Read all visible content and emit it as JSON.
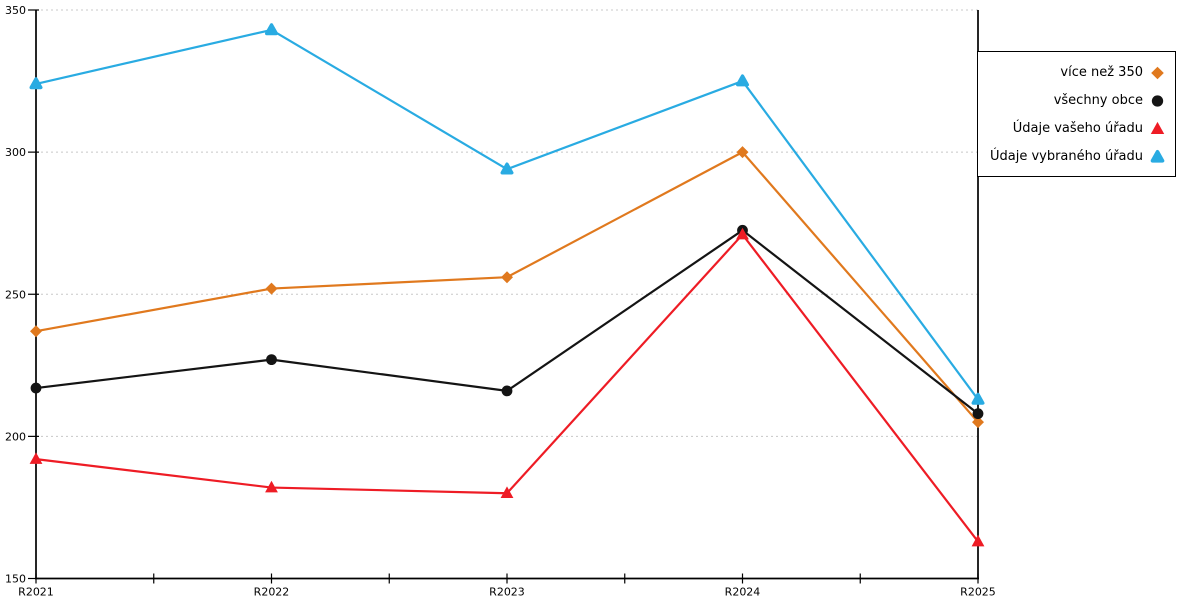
{
  "chart_data": {
    "type": "line",
    "title": "",
    "xlabel": "",
    "ylabel": "",
    "categories": [
      "R2021",
      "R2022",
      "R2023",
      "R2024",
      "R2025"
    ],
    "series": [
      {
        "name": "více než 350",
        "marker": "diamond",
        "color": "#e0791e",
        "values": [
          237,
          252,
          256,
          300,
          205
        ]
      },
      {
        "name": "všechny obce",
        "marker": "circle",
        "color": "#141414",
        "values": [
          217,
          227,
          216,
          272.5,
          208
        ]
      },
      {
        "name": "Údaje vašeho úřadu",
        "marker": "triangle",
        "color": "#ee1c25",
        "values": [
          192,
          182,
          180,
          271,
          163
        ]
      },
      {
        "name": "Údaje vybraného úřadu",
        "marker": "triangle-rounded",
        "color": "#29abe2",
        "values": [
          324,
          343,
          294,
          325,
          213
        ]
      }
    ],
    "ylim": [
      150,
      350
    ],
    "yticks": [
      150,
      200,
      250,
      300,
      350
    ],
    "grid": {
      "horizontal": true,
      "style": "dotted",
      "color": "#c8c8c8"
    },
    "legend_position": "top-right",
    "axis_color": "#000000",
    "background": "#ffffff"
  }
}
